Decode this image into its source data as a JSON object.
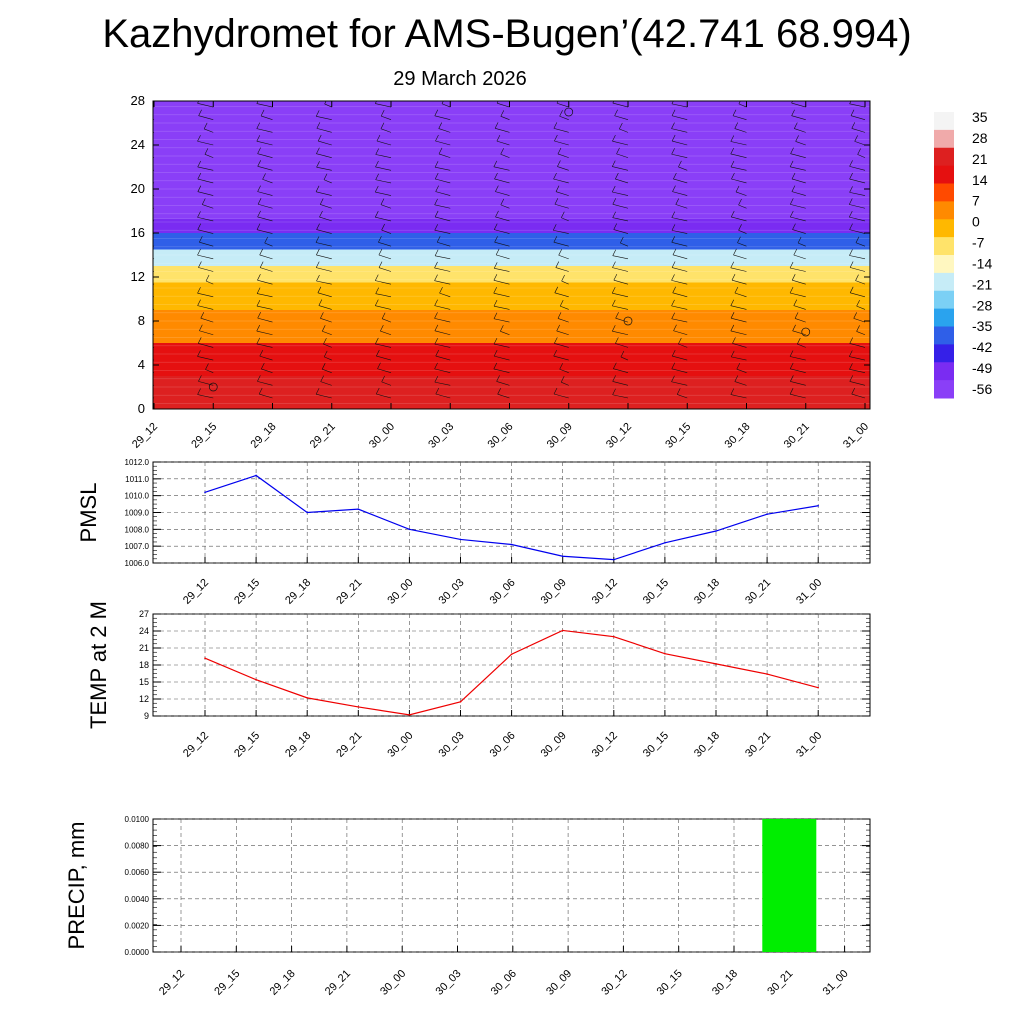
{
  "title": "Kazhydromet for AMS-Bugen’(42.741 68.994)",
  "subtitle": "29 March 2026",
  "chart_data": [
    {
      "type": "heatmap",
      "name": "temperature-wind-cross-section",
      "x": [
        "29_12",
        "29_15",
        "29_18",
        "29_21",
        "30_00",
        "30_03",
        "30_06",
        "30_09",
        "30_12",
        "30_15",
        "30_18",
        "30_21",
        "31_00"
      ],
      "ylim": [
        0,
        28
      ],
      "yticks": [
        "0",
        "4",
        "8",
        "12",
        "16",
        "20",
        "24",
        "28"
      ],
      "colorbar": {
        "labels": [
          "35",
          "28",
          "21",
          "14",
          "7",
          "0",
          "-7",
          "-14",
          "-21",
          "-28",
          "-35",
          "-42",
          "-49",
          "-56"
        ],
        "colors": [
          "#f4f4f4",
          "#f0aaaa",
          "#dd2020",
          "#e51010",
          "#ff4a00",
          "#ff8a00",
          "#ffb800",
          "#ffe36a",
          "#fff7c0",
          "#c6ecf7",
          "#7bd0f5",
          "#2aa3ee",
          "#2f5fe8",
          "#3520e8",
          "#7a2cf2",
          "#8a3ff7"
        ]
      },
      "field_description": "temperature bands by height level (data units)",
      "bands": [
        {
          "from": 0,
          "to": 3,
          "value": 21
        },
        {
          "from": 3,
          "to": 6,
          "value": 14
        },
        {
          "from": 6,
          "to": 9,
          "value": 7
        },
        {
          "from": 9,
          "to": 11.5,
          "value": 0
        },
        {
          "from": 11.5,
          "to": 13,
          "value": -7
        },
        {
          "from": 13,
          "to": 14.5,
          "value": -21
        },
        {
          "from": 14.5,
          "to": 16,
          "value": -35
        },
        {
          "from": 16,
          "to": 17.3,
          "value": -49
        },
        {
          "from": 17.3,
          "to": 19,
          "value": -56
        },
        {
          "from": 19,
          "to": 28,
          "value": -56
        }
      ]
    },
    {
      "type": "line",
      "name": "pmsl",
      "ylabel": "PMSL",
      "categories": [
        "29_12",
        "29_15",
        "29_18",
        "29_21",
        "30_00",
        "30_03",
        "30_06",
        "30_09",
        "30_12",
        "30_15",
        "30_18",
        "30_21",
        "31_00"
      ],
      "values": [
        1010.2,
        1011.2,
        1009.0,
        1009.2,
        1008.0,
        1007.4,
        1007.1,
        1006.4,
        1006.2,
        1007.2,
        1007.9,
        1008.9,
        1009.4
      ],
      "ylim": [
        1006.0,
        1012.0
      ],
      "yticks": [
        "1006.0",
        "1007.0",
        "1008.0",
        "1009.0",
        "1010.0",
        "1011.0",
        "1012.0"
      ],
      "color": "#0000ee"
    },
    {
      "type": "line",
      "name": "temp-2m",
      "ylabel": "TEMP at 2 M",
      "categories": [
        "29_12",
        "29_15",
        "29_18",
        "29_21",
        "30_00",
        "30_03",
        "30_06",
        "30_09",
        "30_12",
        "30_15",
        "30_18",
        "30_21",
        "31_00"
      ],
      "values": [
        19.2,
        15.4,
        12.2,
        10.6,
        9.2,
        11.5,
        19.9,
        24.1,
        23.0,
        20.0,
        18.2,
        16.4,
        14.0
      ],
      "ylim": [
        9,
        27
      ],
      "yticks": [
        "9",
        "12",
        "15",
        "18",
        "21",
        "24",
        "27"
      ],
      "color": "#ee0000"
    },
    {
      "type": "bar",
      "name": "precip",
      "ylabel": "PRECIP, mm",
      "categories": [
        "29_12",
        "29_15",
        "29_18",
        "29_21",
        "30_00",
        "30_03",
        "30_06",
        "30_09",
        "30_12",
        "30_15",
        "30_18",
        "30_21",
        "31_00"
      ],
      "values": [
        0,
        0,
        0,
        0,
        0,
        0,
        0,
        0,
        0,
        0,
        0,
        0.01,
        0
      ],
      "ylim": [
        0,
        0.01
      ],
      "yticks": [
        "0.0000",
        "0.0020",
        "0.0040",
        "0.0060",
        "0.0080",
        "0.0100"
      ],
      "color": "#00ee00"
    }
  ]
}
